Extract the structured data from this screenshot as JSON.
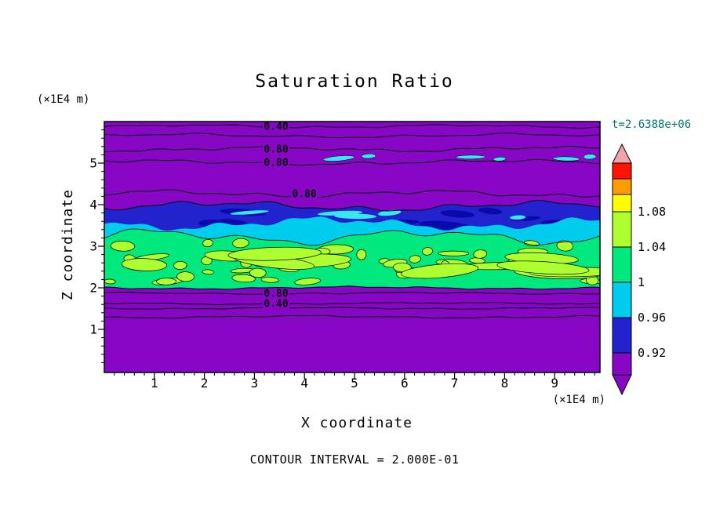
{
  "chart_data": {
    "type": "heatmap",
    "title": "Saturation Ratio",
    "xlabel": "X coordinate",
    "ylabel": "Z coordinate",
    "x_unit": "(×1E4 m)",
    "y_unit": "(×1E4 m)",
    "time_label": "t=2.6388e+06",
    "contour_interval_label": "CONTOUR INTERVAL = 2.000E-01",
    "contour_interval": 0.2,
    "xlim": [
      0,
      9.9
    ],
    "ylim": [
      0,
      6.0
    ],
    "x_ticks": [
      "1",
      "2",
      "3",
      "4",
      "5",
      "6",
      "7",
      "8",
      "9"
    ],
    "y_ticks": [
      "1",
      "2",
      "3",
      "4",
      "5"
    ],
    "contour_line_labels": [
      "0.40",
      "0.80",
      "0.80",
      "0.80",
      "0.80",
      "0.40"
    ],
    "colorbar": {
      "labels_top_to_bottom": [
        "1.08",
        "1.04",
        "1",
        "0.96",
        "0.92"
      ],
      "colors_bottom_to_top": [
        "#8806C6",
        "#2222CE",
        "#00CCEE",
        "#00E87E",
        "#ADFF2F",
        "#FFFF00",
        "#FF9C00",
        "#FF1400",
        "#F2A4AE"
      ]
    },
    "field_summary": {
      "background_value": "< 0.92 (purple)",
      "bands": [
        {
          "z_range": [
            2.0,
            3.3
          ],
          "value_range": "1 to 1.08",
          "colors": [
            "spring green",
            "green-yellow patches"
          ]
        },
        {
          "z_range": [
            3.3,
            3.6
          ],
          "value_range": "0.96 to 1",
          "color": "cyan"
        },
        {
          "z_range": [
            3.6,
            4.0
          ],
          "value_range": "0.92 to 0.96",
          "color": "dark blue"
        },
        {
          "z_range": [
            5.1,
            5.3
          ],
          "value_range": "0.96 to 1",
          "color": "cyan streaks"
        }
      ]
    }
  }
}
